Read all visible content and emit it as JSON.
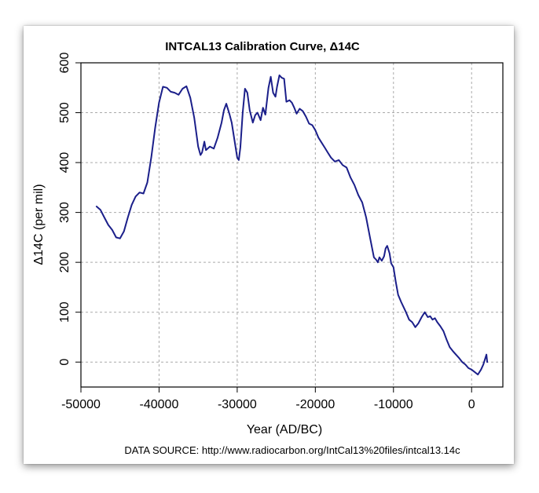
{
  "chart_data": {
    "type": "line",
    "title": "INTCAL13 Calibration Curve, Δ14C",
    "xlabel": "Year (AD/BC)",
    "ylabel": "Δ14C (per mil)",
    "xlim": [
      -50000,
      4000
    ],
    "ylim": [
      -50,
      600
    ],
    "x_ticks": [
      -50000,
      -40000,
      -30000,
      -20000,
      -10000,
      0
    ],
    "x_tick_labels": [
      "-50000",
      "-40000",
      "-30000",
      "-20000",
      "-10000",
      "0"
    ],
    "y_ticks": [
      0,
      100,
      200,
      300,
      400,
      500,
      600
    ],
    "y_tick_labels": [
      "0",
      "100",
      "200",
      "300",
      "400",
      "500",
      "600"
    ],
    "grid": true,
    "color": "#1b1f8a",
    "series": [
      {
        "name": "Δ14C",
        "x": [
          -48000,
          -47500,
          -47000,
          -46500,
          -46000,
          -45500,
          -45000,
          -44500,
          -44000,
          -43500,
          -43000,
          -42500,
          -42000,
          -41500,
          -41000,
          -40500,
          -40000,
          -39500,
          -39000,
          -38500,
          -38000,
          -37500,
          -37000,
          -36500,
          -36000,
          -35500,
          -35000,
          -34700,
          -34500,
          -34200,
          -34000,
          -33500,
          -33000,
          -32500,
          -32000,
          -31700,
          -31400,
          -31000,
          -30700,
          -30300,
          -30000,
          -29800,
          -29600,
          -29300,
          -29000,
          -28700,
          -28400,
          -28000,
          -27700,
          -27400,
          -27000,
          -26700,
          -26400,
          -26000,
          -25700,
          -25400,
          -25100,
          -24900,
          -24600,
          -24300,
          -24000,
          -23700,
          -23300,
          -23000,
          -22700,
          -22400,
          -22000,
          -21600,
          -21200,
          -20800,
          -20400,
          -20000,
          -19600,
          -19200,
          -18800,
          -18400,
          -18000,
          -17500,
          -17000,
          -16500,
          -16000,
          -15500,
          -15000,
          -14500,
          -14000,
          -13500,
          -13000,
          -12500,
          -12200,
          -12000,
          -11800,
          -11500,
          -11200,
          -11000,
          -10800,
          -10500,
          -10300,
          -10000,
          -9700,
          -9400,
          -9000,
          -8700,
          -8400,
          -8000,
          -7600,
          -7200,
          -6800,
          -6400,
          -6000,
          -5600,
          -5300,
          -5000,
          -4700,
          -4400,
          -4000,
          -3600,
          -3200,
          -2800,
          -2400,
          -2000,
          -1600,
          -1200,
          -800,
          -400,
          0,
          400,
          800,
          1200,
          1500,
          1700,
          1900,
          2000
        ],
        "values": [
          312,
          305,
          290,
          275,
          265,
          250,
          248,
          262,
          290,
          315,
          332,
          340,
          338,
          360,
          410,
          470,
          520,
          552,
          550,
          542,
          540,
          536,
          548,
          553,
          530,
          490,
          432,
          415,
          420,
          442,
          425,
          432,
          428,
          450,
          480,
          505,
          518,
          498,
          480,
          440,
          410,
          405,
          430,
          500,
          548,
          540,
          505,
          480,
          495,
          500,
          485,
          510,
          496,
          550,
          572,
          540,
          532,
          552,
          575,
          570,
          568,
          522,
          525,
          520,
          510,
          498,
          508,
          503,
          492,
          478,
          475,
          465,
          450,
          440,
          430,
          420,
          410,
          402,
          405,
          395,
          390,
          370,
          355,
          335,
          320,
          290,
          250,
          210,
          205,
          200,
          210,
          203,
          212,
          228,
          233,
          218,
          198,
          190,
          160,
          135,
          120,
          110,
          100,
          85,
          80,
          70,
          78,
          90,
          100,
          90,
          92,
          85,
          88,
          80,
          72,
          62,
          45,
          30,
          22,
          15,
          8,
          0,
          -5,
          -12,
          -15,
          -20,
          -25,
          -15,
          -5,
          5,
          15,
          0
        ]
      }
    ]
  },
  "footer": {
    "source": "DATA SOURCE: http://www.radiocarbon.org/IntCal13%20files/intcal13.14c"
  }
}
